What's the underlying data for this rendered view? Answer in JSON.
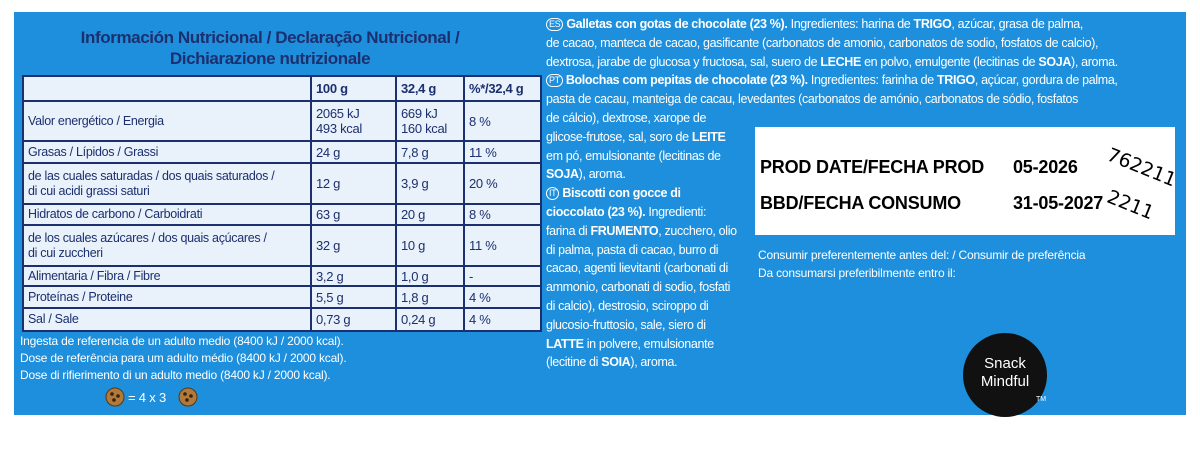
{
  "nutrition": {
    "title": [
      "Información Nutricional / Declaração Nutricional /",
      "Dichiarazione nutrizionale"
    ],
    "columns": [
      "100 g",
      "32,4 g",
      "%*/32,4 g"
    ],
    "rows": [
      {
        "label": [
          "Valor energético / Energia"
        ],
        "values": [
          [
            "2065 kJ",
            "493 kcal"
          ],
          [
            "669 kJ",
            "160 kcal"
          ],
          [
            "8 %"
          ]
        ]
      },
      {
        "label": [
          "Grasas / Lípidos / Grassi"
        ],
        "values": [
          [
            "24 g"
          ],
          [
            "7,8 g"
          ],
          [
            "11 %"
          ]
        ]
      },
      {
        "label": [
          "de las cuales saturadas / dos quais saturados /",
          "di cui acidi grassi saturi"
        ],
        "values": [
          [
            "12 g"
          ],
          [
            "3,9 g"
          ],
          [
            "20 %"
          ]
        ]
      },
      {
        "label": [
          "Hidratos de carbono / Carboidrati"
        ],
        "values": [
          [
            "63 g"
          ],
          [
            "20 g"
          ],
          [
            "8 %"
          ]
        ]
      },
      {
        "label": [
          "de los cuales azúcares / dos quais açúcares /",
          "di cui zuccheri"
        ],
        "values": [
          [
            "32 g"
          ],
          [
            "10 g"
          ],
          [
            "11 %"
          ]
        ]
      },
      {
        "label": [
          "Alimentaria / Fibra / Fibre"
        ],
        "values": [
          [
            "3,2 g"
          ],
          [
            "1,0 g"
          ],
          [
            "-"
          ]
        ]
      },
      {
        "label": [
          "Proteínas / Proteine"
        ],
        "values": [
          [
            "5,5 g"
          ],
          [
            "1,8 g"
          ],
          [
            "4 %"
          ]
        ]
      },
      {
        "label": [
          "Sal / Sale"
        ],
        "values": [
          [
            "0,73 g"
          ],
          [
            "0,24 g"
          ],
          [
            "4 %"
          ]
        ]
      }
    ],
    "reference": [
      "Ingesta de referencia de un adulto medio (8400 kJ / 2000 kcal).",
      "Dose de referência para um adulto médio (8400 kJ / 2000 kcal).",
      "Dose di rifierimento di un adulto medio (8400 kJ / 2000 kcal)."
    ],
    "portion": "= 4 x 3"
  },
  "ingredients": [
    {
      "badge": "ES",
      "segments": [
        {
          "t": "Galletas con gotas de chocolate (23 %).",
          "b": true
        },
        {
          "t": " Ingredientes: harina de ",
          "b": false
        },
        {
          "t": "TRIGO",
          "b": true
        },
        {
          "t": ", azúcar, grasa de palma,",
          "b": false
        }
      ]
    },
    {
      "segments": [
        {
          "t": "de cacao, manteca de cacao, gasificante (carbonatos de amonio, carbonatos de sodio, fosfatos de calcio),",
          "b": false
        }
      ]
    },
    {
      "segments": [
        {
          "t": "dextrosa, jarabe de glucosa y fructosa, sal, suero de ",
          "b": false
        },
        {
          "t": "LECHE",
          "b": true
        },
        {
          "t": " en polvo, emulgente (lecitinas de ",
          "b": false
        },
        {
          "t": "SOJA",
          "b": true
        },
        {
          "t": "), aroma.",
          "b": false
        }
      ]
    },
    {
      "badge": "PT",
      "segments": [
        {
          "t": "Bolochas com pepitas de chocolate (23 %).",
          "b": true
        },
        {
          "t": " Ingredientes: farinha de ",
          "b": false
        },
        {
          "t": "TRIGO",
          "b": true
        },
        {
          "t": ", açúcar, gordura de palma,",
          "b": false
        }
      ]
    },
    {
      "segments": [
        {
          "t": "pasta de cacau, manteiga de cacau, levedantes (carbonatos de amónio, carbonatos de sódio, fosfatos",
          "b": false
        }
      ]
    },
    {
      "segments": [
        {
          "t": "de cálcio), dextrose, xarope de",
          "b": false
        }
      ]
    },
    {
      "segments": [
        {
          "t": "glicose-frutose, sal, soro de ",
          "b": false
        },
        {
          "t": "LEITE",
          "b": true
        }
      ]
    },
    {
      "segments": [
        {
          "t": "em pó, emulsionante (lecitinas de",
          "b": false
        }
      ]
    },
    {
      "segments": [
        {
          "t": "SOJA",
          "b": true
        },
        {
          "t": "), aroma.",
          "b": false
        }
      ]
    },
    {
      "badge": "IT",
      "segments": [
        {
          "t": "Biscotti con gocce di",
          "b": true
        }
      ]
    },
    {
      "segments": [
        {
          "t": "cioccolato (23 %).",
          "b": true
        },
        {
          "t": " Ingredienti:",
          "b": false
        }
      ]
    },
    {
      "segments": [
        {
          "t": "farina di ",
          "b": false
        },
        {
          "t": "FRUMENTO",
          "b": true
        },
        {
          "t": ", zucchero, olio",
          "b": false
        }
      ]
    },
    {
      "segments": [
        {
          "t": "di palma, pasta di cacao, burro di",
          "b": false
        }
      ]
    },
    {
      "segments": [
        {
          "t": "cacao, agenti lievitanti (carbonati di",
          "b": false
        }
      ]
    },
    {
      "segments": [
        {
          "t": "ammonio, carbonati di sodio, fosfati",
          "b": false
        }
      ]
    },
    {
      "segments": [
        {
          "t": "di calcio), destrosio, sciroppo di",
          "b": false
        }
      ]
    },
    {
      "segments": [
        {
          "t": "glucosio-fruttosio, sale, siero di",
          "b": false
        }
      ]
    },
    {
      "segments": [
        {
          "t": "LATTE",
          "b": true
        },
        {
          "t": " in polvere, emulsionante",
          "b": false
        }
      ]
    },
    {
      "segments": [
        {
          "t": "(lecitine di ",
          "b": false
        },
        {
          "t": "SOIA",
          "b": true
        },
        {
          "t": "), aroma.",
          "b": false
        }
      ]
    }
  ],
  "date_box": {
    "lines": [
      {
        "label": "PROD DATE/FECHA PROD",
        "value": "05-2026"
      },
      {
        "label": "BBD/FECHA CONSUMO",
        "value": "31-05-2027"
      }
    ],
    "codes": [
      "762211",
      "2211"
    ]
  },
  "best_before": [
    "Consumir preferentemente antes del: / Consumir de preferência",
    "Da consumarsi preferibilmente entro il:"
  ],
  "logo": {
    "lines": [
      "Snack",
      "Mindful"
    ],
    "mark": "TM"
  }
}
